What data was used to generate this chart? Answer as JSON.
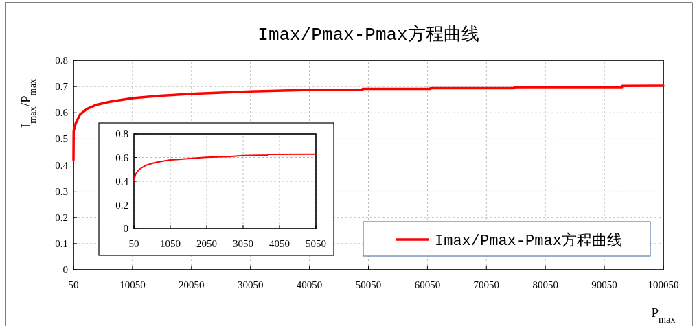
{
  "chart_data": [
    {
      "type": "line",
      "title": "Imax/Pmax-Pmax方程曲线",
      "xlabel": "P$_{max}$",
      "ylabel": "I$_{max}$/P$_{max}$",
      "xlim": [
        50,
        100050
      ],
      "ylim": [
        0,
        0.8
      ],
      "xticks": [
        50,
        10050,
        20050,
        30050,
        40050,
        50050,
        60050,
        70050,
        80050,
        90050,
        100050
      ],
      "yticks": [
        0,
        0.1,
        0.2,
        0.3,
        0.4,
        0.5,
        0.6,
        0.7,
        0.8
      ],
      "grid": true,
      "legend": "bottom right",
      "series": [
        {
          "name": "Imax/Pmax-Pmax方程曲线",
          "color": "#ff0000",
          "x": [
            50,
            80,
            400,
            1180,
            2340,
            3890,
            6220,
            10050,
            14750,
            20050,
            30050,
            40050,
            49060,
            49060,
            60580,
            60580,
            74790,
            74790,
            93060,
            93060,
            100050
          ],
          "values": [
            0.42,
            0.53,
            0.558,
            0.594,
            0.615,
            0.63,
            0.642,
            0.656,
            0.665,
            0.672,
            0.681,
            0.687,
            0.687,
            0.691,
            0.691,
            0.694,
            0.694,
            0.698,
            0.698,
            0.702,
            0.703
          ]
        }
      ]
    },
    {
      "type": "line",
      "xlim": [
        50,
        5050
      ],
      "ylim": [
        0,
        0.8
      ],
      "xticks": [
        50,
        1050,
        2050,
        3050,
        4050,
        5050
      ],
      "yticks": [
        0,
        0.2,
        0.4,
        0.6,
        0.8
      ],
      "grid": true,
      "series": [
        {
          "color": "#ff0000",
          "x": [
            50,
            99,
            194,
            384,
            639,
            1018,
            1650,
            2030,
            2660,
            3040,
            3740,
            3740,
            5050
          ],
          "values": [
            0.404,
            0.462,
            0.5,
            0.535,
            0.558,
            0.578,
            0.593,
            0.601,
            0.607,
            0.616,
            0.62,
            0.626,
            0.628
          ]
        }
      ]
    }
  ]
}
